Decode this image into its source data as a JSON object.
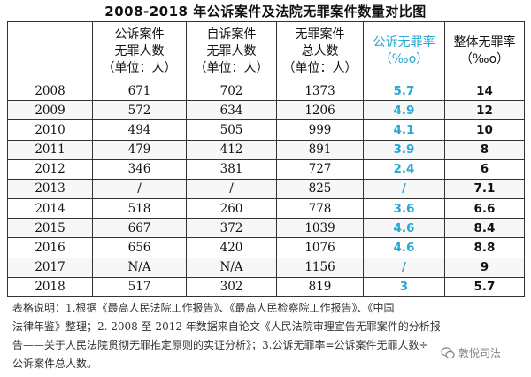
{
  "title": "2008-2018 年公诉案件及法院无罪案件数量对比图",
  "colors": {
    "accent": "#2aa7d0",
    "text": "#111111",
    "border": "#333333"
  },
  "table": {
    "headers": [
      {
        "lines": [
          ""
        ]
      },
      {
        "lines": [
          "公诉案件",
          "无罪人数",
          "（单位：人）"
        ]
      },
      {
        "lines": [
          "自诉案件",
          "无罪人数",
          "（单位：人）"
        ]
      },
      {
        "lines": [
          "无罪案件",
          "总人数",
          "（单位：人）"
        ]
      },
      {
        "lines": [
          "公诉无罪率",
          "（‰o）"
        ]
      },
      {
        "lines": [
          "整体无罪率",
          "（‰o）"
        ]
      }
    ],
    "rows": [
      [
        "2008",
        "671",
        "702",
        "1373",
        "5.7",
        "14"
      ],
      [
        "2009",
        "572",
        "634",
        "1206",
        "4.9",
        "12"
      ],
      [
        "2010",
        "494",
        "505",
        "999",
        "4.1",
        "10"
      ],
      [
        "2011",
        "479",
        "412",
        "891",
        "3.9",
        "8"
      ],
      [
        "2012",
        "346",
        "381",
        "727",
        "2.4",
        "6"
      ],
      [
        "2013",
        "/",
        "/",
        "825",
        "/",
        "7.1"
      ],
      [
        "2014",
        "518",
        "260",
        "778",
        "3.6",
        "6.6"
      ],
      [
        "2015",
        "667",
        "372",
        "1039",
        "4.6",
        "8.4"
      ],
      [
        "2016",
        "656",
        "420",
        "1076",
        "4.6",
        "8.8"
      ],
      [
        "2017",
        "N/A",
        "N/A",
        "1156",
        "/",
        "9"
      ],
      [
        "2018",
        "517",
        "302",
        "819",
        "3",
        "5.7"
      ]
    ]
  },
  "notes": [
    "表格说明：1.根据《最高人民法院工作报告》、《最高人民检察院工作报告》、《中国",
    "法律年鉴》整理；2. 2008 至 2012 年数据来自论文《人民法院审理宣告无罪案件的分析报",
    "告——关于人民法院贯彻无罪推定原则的实证分析》；3.公诉无罪率=公诉案件无罪人数÷",
    "公诉案件总人数。"
  ],
  "watermark": {
    "text": "敦悦司法",
    "icon": "wechat-icon"
  },
  "chart_data": {
    "type": "table",
    "title": "2008-2018 年公诉案件及法院无罪案件数量对比图",
    "columns": [
      "",
      "公诉案件无罪人数（单位：人）",
      "自诉案件无罪人数（单位：人）",
      "无罪案件总人数（单位：人）",
      "公诉无罪率（‰o）",
      "整体无罪率（‰o）"
    ],
    "rows": [
      [
        "2008",
        671,
        702,
        1373,
        5.7,
        14
      ],
      [
        "2009",
        572,
        634,
        1206,
        4.9,
        12
      ],
      [
        "2010",
        494,
        505,
        999,
        4.1,
        10
      ],
      [
        "2011",
        479,
        412,
        891,
        3.9,
        8
      ],
      [
        "2012",
        346,
        381,
        727,
        2.4,
        6
      ],
      [
        "2013",
        "/",
        "/",
        825,
        "/",
        7.1
      ],
      [
        "2014",
        518,
        260,
        778,
        3.6,
        6.6
      ],
      [
        "2015",
        667,
        372,
        1039,
        4.6,
        8.4
      ],
      [
        "2016",
        656,
        420,
        1076,
        4.6,
        8.8
      ],
      [
        "2017",
        "N/A",
        "N/A",
        1156,
        "/",
        9
      ],
      [
        "2018",
        517,
        302,
        819,
        3,
        5.7
      ]
    ]
  }
}
